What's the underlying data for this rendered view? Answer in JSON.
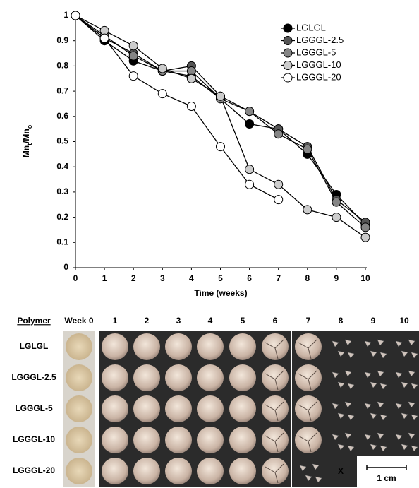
{
  "chart_data": {
    "type": "line",
    "y_label": [
      "Mn",
      "t",
      "/Mn",
      "o"
    ],
    "x_label": "Time (weeks)",
    "x": [
      0,
      1,
      2,
      3,
      4,
      5,
      6,
      7,
      8,
      9,
      10
    ],
    "xlim": [
      0,
      10
    ],
    "xticks": [
      0,
      1,
      2,
      3,
      4,
      5,
      6,
      7,
      8,
      9,
      10
    ],
    "ylim": [
      0,
      1
    ],
    "yticks": [
      0,
      0.1,
      0.2,
      0.3,
      0.4,
      0.5,
      0.6,
      0.7,
      0.8,
      0.9,
      1
    ],
    "grid": false,
    "legend": "upper right",
    "series": [
      {
        "name": "LGLGL",
        "color": "#000000",
        "values": [
          1,
          0.9,
          0.82,
          0.78,
          0.76,
          0.67,
          0.57,
          0.55,
          0.45,
          0.29,
          0.17
        ]
      },
      {
        "name": "LGGGL-2.5",
        "color": "#555555",
        "values": [
          1,
          0.91,
          0.85,
          0.78,
          0.8,
          0.68,
          0.62,
          0.55,
          0.48,
          0.27,
          0.18
        ]
      },
      {
        "name": "LGGGL-5",
        "color": "#858585",
        "values": [
          1,
          0.92,
          0.84,
          0.78,
          0.78,
          0.67,
          0.62,
          0.53,
          0.47,
          0.26,
          0.16
        ]
      },
      {
        "name": "LGGGL-10",
        "color": "#cccccc",
        "values": [
          1,
          0.94,
          0.88,
          0.79,
          0.75,
          0.68,
          0.39,
          0.33,
          0.23,
          0.2,
          0.12
        ]
      },
      {
        "name": "LGGGL-20",
        "color": "#ffffff",
        "values": [
          1,
          0.91,
          0.76,
          0.69,
          0.64,
          0.48,
          0.33,
          0.27,
          null,
          null,
          null
        ]
      }
    ]
  },
  "photo_panel": {
    "row_header": "Polymer",
    "columns": [
      "Week 0",
      "1",
      "2",
      "3",
      "4",
      "5",
      "6",
      "7",
      "8",
      "9",
      "10"
    ],
    "rows": [
      "LGLGL",
      "LGGGL-2.5",
      "LGGGL-5",
      "LGGGL-10",
      "LGGGL-20"
    ],
    "missing_mark": "X",
    "scale_bar": "1 cm"
  }
}
